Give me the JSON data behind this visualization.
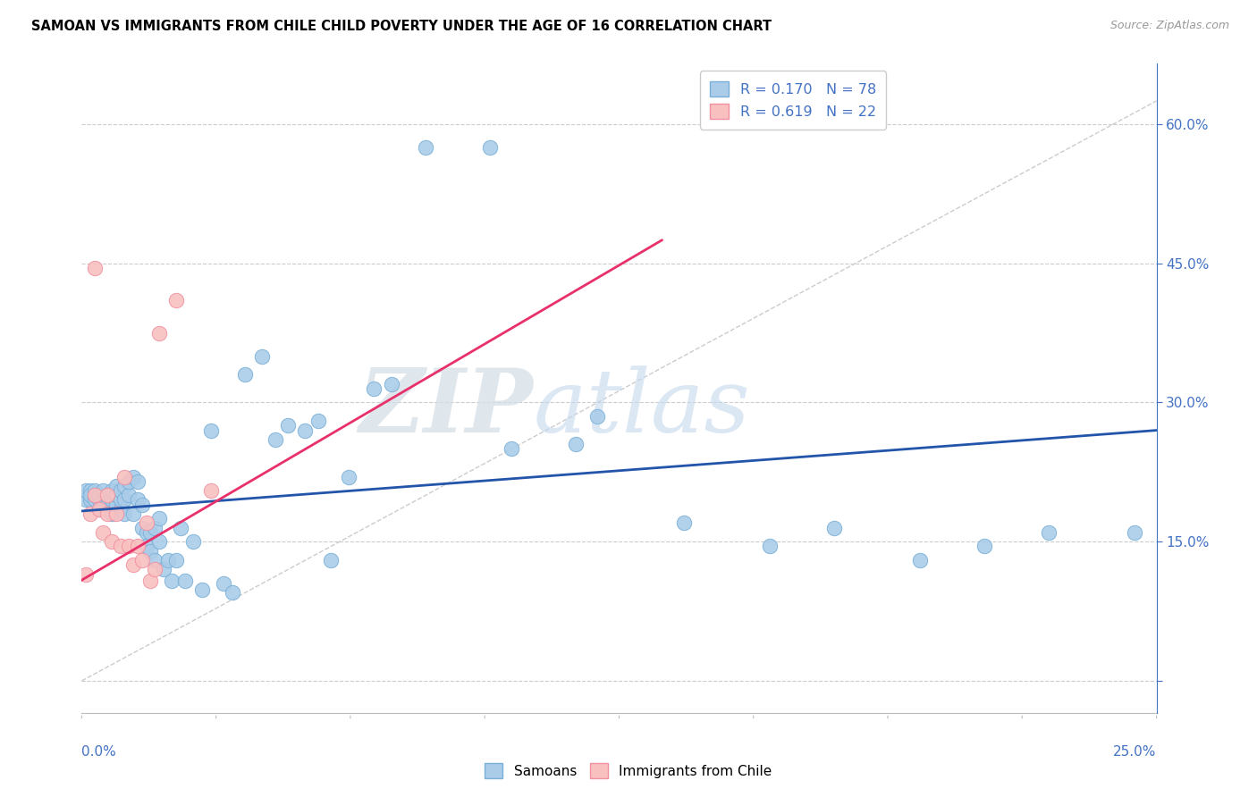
{
  "title": "SAMOAN VS IMMIGRANTS FROM CHILE CHILD POVERTY UNDER THE AGE OF 16 CORRELATION CHART",
  "source": "Source: ZipAtlas.com",
  "xmin": 0.0,
  "xmax": 0.25,
  "ymin": -0.035,
  "ymax": 0.665,
  "watermark_zip": "ZIP",
  "watermark_atlas": "atlas",
  "samoan_color_face": "#aacce8",
  "samoan_color_edge": "#7ab0d8",
  "chile_color_face": "#f9c0c0",
  "chile_color_edge": "#f090a0",
  "trend_blue": "#2255aa",
  "trend_pink": "#e8306a",
  "ref_line_color": "#cccccc",
  "grid_color": "#cccccc",
  "legend_text_color": "#4472c4",
  "yticks": [
    0.0,
    0.15,
    0.3,
    0.45,
    0.6
  ],
  "ytick_labels": [
    "",
    "15.0%",
    "30.0%",
    "45.0%",
    "60.0%"
  ],
  "blue_trend": [
    0.0,
    0.183,
    0.25,
    0.27
  ],
  "pink_trend": [
    -0.005,
    0.095,
    0.135,
    0.475
  ],
  "ref_line": [
    0.0,
    0.0,
    0.25,
    0.625
  ],
  "samoan_x": [
    0.001,
    0.001,
    0.002,
    0.002,
    0.002,
    0.003,
    0.003,
    0.003,
    0.004,
    0.004,
    0.004,
    0.005,
    0.005,
    0.005,
    0.006,
    0.006,
    0.006,
    0.007,
    0.007,
    0.007,
    0.008,
    0.008,
    0.008,
    0.009,
    0.009,
    0.009,
    0.01,
    0.01,
    0.01,
    0.011,
    0.011,
    0.012,
    0.012,
    0.013,
    0.013,
    0.014,
    0.014,
    0.015,
    0.015,
    0.016,
    0.016,
    0.017,
    0.017,
    0.018,
    0.018,
    0.019,
    0.02,
    0.021,
    0.022,
    0.023,
    0.024,
    0.026,
    0.028,
    0.03,
    0.033,
    0.035,
    0.038,
    0.042,
    0.045,
    0.048,
    0.052,
    0.055,
    0.058,
    0.062,
    0.068,
    0.072,
    0.08,
    0.095,
    0.1,
    0.115,
    0.12,
    0.14,
    0.16,
    0.175,
    0.195,
    0.21,
    0.225,
    0.245
  ],
  "samoan_y": [
    0.195,
    0.205,
    0.195,
    0.205,
    0.2,
    0.195,
    0.2,
    0.205,
    0.185,
    0.195,
    0.2,
    0.19,
    0.195,
    0.205,
    0.185,
    0.19,
    0.2,
    0.18,
    0.195,
    0.205,
    0.19,
    0.2,
    0.21,
    0.185,
    0.195,
    0.205,
    0.18,
    0.195,
    0.21,
    0.2,
    0.215,
    0.18,
    0.22,
    0.195,
    0.215,
    0.19,
    0.165,
    0.16,
    0.145,
    0.16,
    0.14,
    0.165,
    0.13,
    0.15,
    0.175,
    0.12,
    0.13,
    0.108,
    0.13,
    0.165,
    0.108,
    0.15,
    0.098,
    0.27,
    0.105,
    0.095,
    0.33,
    0.35,
    0.26,
    0.275,
    0.27,
    0.28,
    0.13,
    0.22,
    0.315,
    0.32,
    0.575,
    0.575,
    0.25,
    0.255,
    0.285,
    0.17,
    0.145,
    0.165,
    0.13,
    0.145,
    0.16,
    0.16
  ],
  "chile_x": [
    0.001,
    0.002,
    0.003,
    0.003,
    0.004,
    0.005,
    0.006,
    0.006,
    0.007,
    0.008,
    0.009,
    0.01,
    0.011,
    0.012,
    0.013,
    0.014,
    0.015,
    0.016,
    0.017,
    0.018,
    0.022,
    0.03
  ],
  "chile_y": [
    0.115,
    0.18,
    0.2,
    0.445,
    0.185,
    0.16,
    0.2,
    0.18,
    0.15,
    0.18,
    0.145,
    0.22,
    0.145,
    0.125,
    0.145,
    0.13,
    0.17,
    0.108,
    0.12,
    0.375,
    0.41,
    0.205
  ]
}
